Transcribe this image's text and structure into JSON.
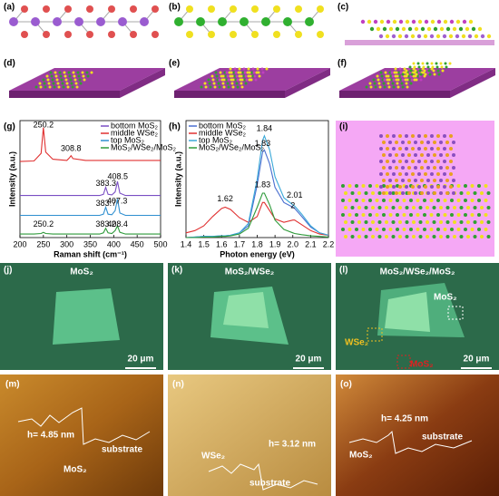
{
  "panel_labels": [
    "(a)",
    "(b)",
    "(c)",
    "(d)",
    "(e)",
    "(f)",
    "(g)",
    "(h)",
    "(i)",
    "(j)",
    "(k)",
    "(l)",
    "(m)",
    "(n)",
    "(o)"
  ],
  "chart_data": [
    {
      "type": "line",
      "xlabel": "Raman shift (cm⁻¹)",
      "ylabel": "Intensity (a.u.)",
      "x": [
        200,
        230,
        245,
        250,
        255,
        270,
        300,
        305,
        309,
        313,
        340,
        370,
        378,
        383,
        388,
        396,
        403,
        408,
        413,
        425,
        460,
        500
      ],
      "series": [
        {
          "name": "bottom MoS₂",
          "color": "#7a4fc4",
          "values": [
            3.6,
            3.6,
            3.6,
            3.6,
            3.6,
            3.6,
            3.6,
            3.6,
            3.6,
            3.6,
            3.6,
            3.6,
            3.7,
            4.3,
            3.7,
            3.65,
            3.9,
            4.8,
            3.8,
            3.6,
            3.6,
            3.6
          ]
        },
        {
          "name": "middle WSe₂",
          "color": "#e03030",
          "values": [
            6.5,
            6.55,
            7.2,
            9.4,
            7.3,
            6.7,
            6.6,
            6.8,
            7.0,
            6.75,
            6.6,
            6.6,
            6.6,
            6.6,
            6.6,
            6.6,
            6.6,
            6.6,
            6.6,
            6.6,
            6.6,
            6.6
          ]
        },
        {
          "name": "top MoS₂",
          "color": "#2f8fd0",
          "values": [
            1.9,
            1.9,
            1.9,
            1.9,
            1.9,
            1.9,
            1.9,
            1.9,
            1.9,
            1.9,
            1.9,
            1.9,
            2.0,
            2.6,
            2.0,
            1.95,
            2.3,
            3.3,
            2.1,
            1.9,
            1.9,
            1.9
          ]
        },
        {
          "name": "MoS₂/WSe₂/MoS₂",
          "color": "#2e9a3a",
          "values": [
            0.3,
            0.3,
            0.35,
            0.45,
            0.35,
            0.3,
            0.3,
            0.3,
            0.3,
            0.3,
            0.3,
            0.3,
            0.4,
            0.8,
            0.4,
            0.35,
            0.6,
            1.0,
            0.45,
            0.3,
            0.3,
            0.3
          ]
        }
      ],
      "xlim": [
        200,
        500
      ],
      "xticks": [
        200,
        250,
        300,
        350,
        400,
        450,
        500
      ],
      "ylim": [
        0,
        10
      ],
      "legend": "upper right",
      "annotations": [
        {
          "text": "250.2",
          "x": 250.2,
          "y": 9.6
        },
        {
          "text": "308.8",
          "x": 308.8,
          "y": 7.6
        },
        {
          "text": "383.3",
          "x": 383.3,
          "y": 4.6
        },
        {
          "text": "408.5",
          "x": 408.5,
          "y": 5.2
        },
        {
          "text": "383.7",
          "x": 383.7,
          "y": 2.9
        },
        {
          "text": "407.3",
          "x": 407.3,
          "y": 3.1
        },
        {
          "text": "250.2",
          "x": 250.2,
          "y": 1.1
        },
        {
          "text": "383.2",
          "x": 383.2,
          "y": 1.1
        },
        {
          "text": "408.4",
          "x": 408.4,
          "y": 1.1
        }
      ]
    },
    {
      "type": "line",
      "xlabel": "Photon energy (eV)",
      "ylabel": "Intensity (a.u.)",
      "x": [
        1.4,
        1.45,
        1.5,
        1.55,
        1.6,
        1.62,
        1.65,
        1.7,
        1.75,
        1.8,
        1.83,
        1.84,
        1.87,
        1.9,
        1.95,
        2.0,
        2.01,
        2.05,
        2.1,
        2.15,
        2.2
      ],
      "series": [
        {
          "name": "bottom MoS₂",
          "color": "#4a6fd0",
          "values": [
            0,
            0.05,
            0.1,
            0.1,
            0.15,
            0.15,
            0.2,
            0.4,
            1.0,
            4.5,
            7.3,
            7.5,
            6.3,
            4.3,
            3.0,
            2.6,
            2.5,
            1.8,
            0.9,
            0.4,
            0.2
          ]
        },
        {
          "name": "middle WSe₂",
          "color": "#e03030",
          "values": [
            0.4,
            0.6,
            1.0,
            1.8,
            2.5,
            2.6,
            2.4,
            1.7,
            1.3,
            1.8,
            3.0,
            3.0,
            2.3,
            1.6,
            1.3,
            1.5,
            1.5,
            1.1,
            0.6,
            0.3,
            0.2
          ]
        },
        {
          "name": "top MoS₂",
          "color": "#3aa8d8",
          "values": [
            0,
            0.05,
            0.1,
            0.1,
            0.15,
            0.15,
            0.2,
            0.4,
            1.2,
            5.0,
            8.3,
            8.7,
            7.5,
            5.2,
            3.4,
            2.8,
            2.7,
            2.0,
            1.0,
            0.4,
            0.2
          ]
        },
        {
          "name": "MoS₂/WSe₂/MoS₂",
          "color": "#2e9a3a",
          "values": [
            0,
            0,
            0.05,
            0.05,
            0.1,
            0.1,
            0.15,
            0.3,
            0.8,
            2.6,
            3.8,
            3.8,
            2.8,
            1.5,
            0.7,
            0.4,
            0.35,
            0.25,
            0.15,
            0.1,
            0.05
          ]
        }
      ],
      "xlim": [
        1.4,
        2.2
      ],
      "xticks": [
        1.4,
        1.5,
        1.6,
        1.7,
        1.8,
        1.9,
        {
          "value": 2,
          "label": "2.0"
        },
        2.1,
        2.2
      ],
      "ylim": [
        0,
        10
      ],
      "legend": "upper left",
      "annotations": [
        {
          "text": "1.84",
          "x": 1.84,
          "y": 9.3
        },
        {
          "text": "1.83",
          "x": 1.83,
          "y": 8.0
        },
        {
          "text": "1.62",
          "x": 1.62,
          "y": 3.3
        },
        {
          "text": "1.83",
          "x": 1.83,
          "y": 4.5
        },
        {
          "text": "2.01",
          "x": 2.01,
          "y": 3.6
        },
        {
          "text": "2",
          "x": 2.0,
          "y": 2.7
        }
      ]
    }
  ],
  "optical": [
    {
      "title": "MoS₂",
      "scale_bar": "20 μm"
    },
    {
      "title": "MoS₂/WSe₂",
      "scale_bar": "20 μm"
    },
    {
      "title": "MoS₂/WSe₂/MoS₂",
      "scale_bar": "20 μm",
      "labels": [
        "MoS₂",
        "WSe₂",
        "MoS₂"
      ]
    }
  ],
  "afm": [
    {
      "labels": [
        "h= 4.85 nm",
        "MoS₂",
        "substrate"
      ]
    },
    {
      "labels": [
        "WSe₂",
        "h= 3.12 nm",
        "substrate"
      ]
    },
    {
      "labels": [
        "h= 4.25 nm",
        "MoS₂",
        "substrate"
      ]
    }
  ]
}
